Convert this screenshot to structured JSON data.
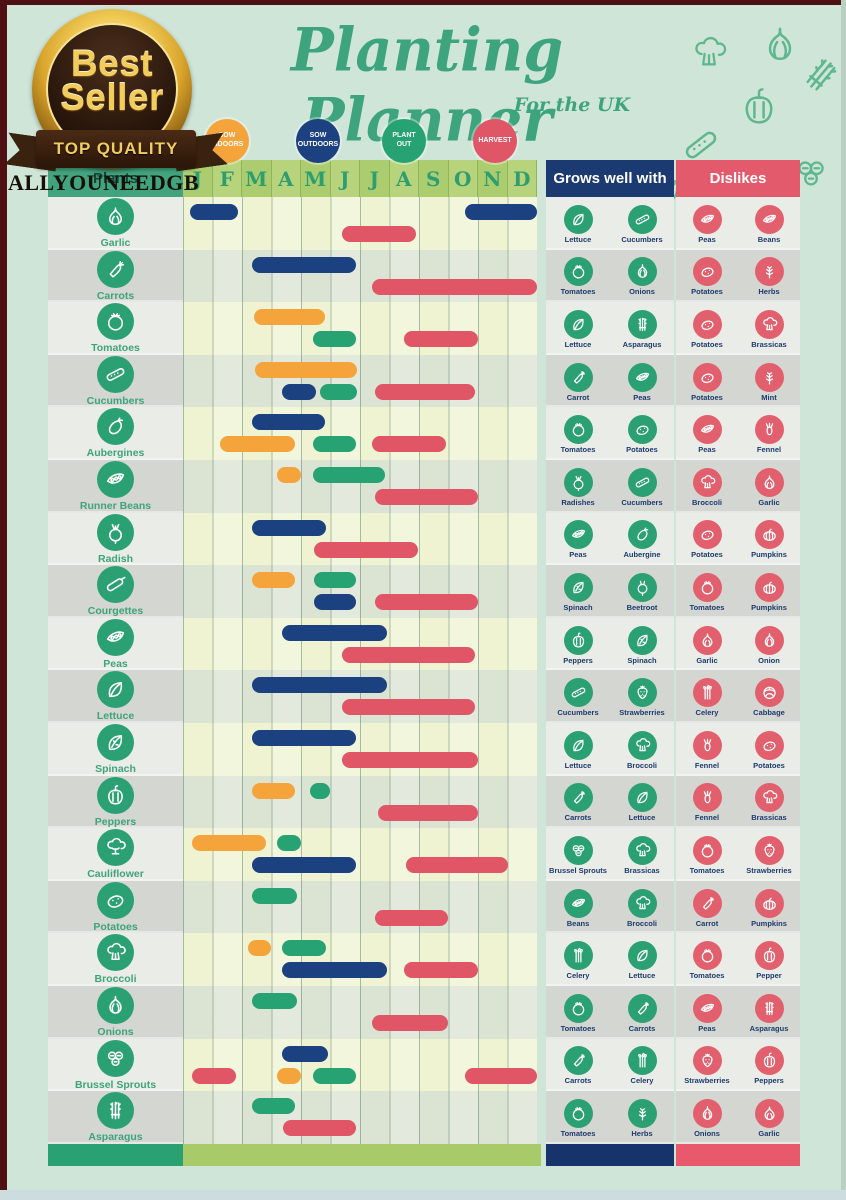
{
  "badge": {
    "top": "Best",
    "bottom": "Seller",
    "ribbon": "TOP QUALITY",
    "brand": "ALLYOUNEEDGB"
  },
  "title": "Planting Planner",
  "subtitle": "For the UK",
  "headers": {
    "plants": "Plants",
    "grows": "Grows well with",
    "dislikes": "Dislikes"
  },
  "colors": {
    "page_bg": "#cfe5d7",
    "title_green": "#3da47d",
    "sow-indoors": "#f5a43c",
    "sow-outdoors": "#1c4181",
    "plant-out": "#27a273",
    "harvest": "#e05666",
    "grows_header": "#1c3a72",
    "dislikes_header": "#e25a6b",
    "month_band": "#accd6f",
    "footer_months": "#a9ca69",
    "footer_plants": "#2aa173",
    "footer_grows": "#16336b",
    "footer_dislikes": "#e8596b"
  },
  "chart_data": {
    "type": "gantt",
    "title": "Planting Planner",
    "subtitle": "For the UK",
    "months": [
      "J",
      "F",
      "M",
      "A",
      "M",
      "J",
      "J",
      "A",
      "S",
      "O",
      "N",
      "D"
    ],
    "legend": [
      {
        "key": "sow-indoors",
        "label": "SOW INDOORS",
        "color": "#f5a43c"
      },
      {
        "key": "sow-outdoors",
        "label": "SOW OUTDOORS",
        "color": "#1c4181"
      },
      {
        "key": "plant-out",
        "label": "PLANT OUT",
        "color": "#27a273"
      },
      {
        "key": "harvest",
        "label": "HARVEST",
        "color": "#e05666"
      }
    ],
    "axis_note": "bars measured in months, 0 = start of January, 12 = end of December",
    "rows": [
      {
        "name": "Garlic",
        "icon": "garlic",
        "bars": [
          {
            "t": "sow-outdoors",
            "s": 0.25,
            "e": 1.85,
            "l": 1
          },
          {
            "t": "sow-outdoors",
            "s": 9.55,
            "e": 12,
            "l": 1
          },
          {
            "t": "harvest",
            "s": 5.4,
            "e": 7.9,
            "l": 2
          }
        ],
        "grows": [
          {
            "label": "Lettuce",
            "icon": "lettuce"
          },
          {
            "label": "Cucumbers",
            "icon": "cucumber"
          }
        ],
        "dislikes": [
          {
            "label": "Peas",
            "icon": "peas"
          },
          {
            "label": "Beans",
            "icon": "peas"
          }
        ]
      },
      {
        "name": "Carrots",
        "icon": "carrot",
        "bars": [
          {
            "t": "sow-outdoors",
            "s": 2.35,
            "e": 5.85,
            "l": 1
          },
          {
            "t": "harvest",
            "s": 6.4,
            "e": 12,
            "l": 2
          }
        ],
        "grows": [
          {
            "label": "Tomatoes",
            "icon": "tomato"
          },
          {
            "label": "Onions",
            "icon": "onion"
          }
        ],
        "dislikes": [
          {
            "label": "Potatoes",
            "icon": "potato"
          },
          {
            "label": "Herbs",
            "icon": "herbs"
          }
        ]
      },
      {
        "name": "Tomatoes",
        "icon": "tomato",
        "bars": [
          {
            "t": "sow-indoors",
            "s": 2.4,
            "e": 4.8,
            "l": 1
          },
          {
            "t": "plant-out",
            "s": 4.4,
            "e": 5.85,
            "l": 2
          },
          {
            "t": "harvest",
            "s": 7.5,
            "e": 10,
            "l": 2
          }
        ],
        "grows": [
          {
            "label": "Lettuce",
            "icon": "lettuce"
          },
          {
            "label": "Asparagus",
            "icon": "asparagus"
          }
        ],
        "dislikes": [
          {
            "label": "Potatoes",
            "icon": "potato"
          },
          {
            "label": "Brassicas",
            "icon": "broccoli"
          }
        ]
      },
      {
        "name": "Cucumbers",
        "icon": "cucumber",
        "bars": [
          {
            "t": "sow-indoors",
            "s": 2.45,
            "e": 5.9,
            "l": 1
          },
          {
            "t": "sow-outdoors",
            "s": 3.35,
            "e": 4.5,
            "l": 2
          },
          {
            "t": "plant-out",
            "s": 4.65,
            "e": 5.9,
            "l": 2
          },
          {
            "t": "harvest",
            "s": 6.5,
            "e": 9.9,
            "l": 2
          }
        ],
        "grows": [
          {
            "label": "Carrot",
            "icon": "carrot"
          },
          {
            "label": "Peas",
            "icon": "peas"
          }
        ],
        "dislikes": [
          {
            "label": "Potatoes",
            "icon": "potato"
          },
          {
            "label": "Mint",
            "icon": "herbs"
          }
        ]
      },
      {
        "name": "Aubergines",
        "icon": "aubergine",
        "bars": [
          {
            "t": "sow-outdoors",
            "s": 2.35,
            "e": 4.8,
            "l": 1
          },
          {
            "t": "sow-indoors",
            "s": 1.25,
            "e": 3.8,
            "l": 2
          },
          {
            "t": "plant-out",
            "s": 4.4,
            "e": 5.85,
            "l": 2
          },
          {
            "t": "harvest",
            "s": 6.4,
            "e": 8.9,
            "l": 2
          }
        ],
        "grows": [
          {
            "label": "Tomatoes",
            "icon": "tomato"
          },
          {
            "label": "Potatoes",
            "icon": "potato"
          }
        ],
        "dislikes": [
          {
            "label": "Peas",
            "icon": "peas"
          },
          {
            "label": "Fennel",
            "icon": "fennel"
          }
        ]
      },
      {
        "name": "Runner Beans",
        "icon": "peas",
        "bars": [
          {
            "t": "sow-indoors",
            "s": 3.2,
            "e": 4.0,
            "l": 1
          },
          {
            "t": "plant-out",
            "s": 4.4,
            "e": 6.85,
            "l": 1
          },
          {
            "t": "harvest",
            "s": 6.5,
            "e": 10,
            "l": 2
          }
        ],
        "grows": [
          {
            "label": "Radishes",
            "icon": "radish"
          },
          {
            "label": "Cucumbers",
            "icon": "cucumber"
          }
        ],
        "dislikes": [
          {
            "label": "Broccoli",
            "icon": "broccoli"
          },
          {
            "label": "Garlic",
            "icon": "garlic"
          }
        ]
      },
      {
        "name": "Radish",
        "icon": "radish",
        "bars": [
          {
            "t": "sow-outdoors",
            "s": 2.35,
            "e": 4.85,
            "l": 1
          },
          {
            "t": "harvest",
            "s": 4.45,
            "e": 7.95,
            "l": 2
          }
        ],
        "grows": [
          {
            "label": "Peas",
            "icon": "peas"
          },
          {
            "label": "Aubergine",
            "icon": "aubergine"
          }
        ],
        "dislikes": [
          {
            "label": "Potatoes",
            "icon": "potato"
          },
          {
            "label": "Pumpkins",
            "icon": "pumpkin"
          }
        ]
      },
      {
        "name": "Courgettes",
        "icon": "courgette",
        "bars": [
          {
            "t": "sow-indoors",
            "s": 2.35,
            "e": 3.8,
            "l": 1
          },
          {
            "t": "plant-out",
            "s": 4.45,
            "e": 5.85,
            "l": 1
          },
          {
            "t": "sow-outdoors",
            "s": 4.45,
            "e": 5.85,
            "l": 2
          },
          {
            "t": "harvest",
            "s": 6.5,
            "e": 10,
            "l": 2
          }
        ],
        "grows": [
          {
            "label": "Spinach",
            "icon": "spinach"
          },
          {
            "label": "Beetroot",
            "icon": "beetroot"
          }
        ],
        "dislikes": [
          {
            "label": "Tomatoes",
            "icon": "tomato"
          },
          {
            "label": "Pumpkins",
            "icon": "pumpkin"
          }
        ]
      },
      {
        "name": "Peas",
        "icon": "peas",
        "bars": [
          {
            "t": "sow-outdoors",
            "s": 3.35,
            "e": 6.9,
            "l": 1
          },
          {
            "t": "harvest",
            "s": 5.4,
            "e": 9.9,
            "l": 2
          }
        ],
        "grows": [
          {
            "label": "Peppers",
            "icon": "pepper"
          },
          {
            "label": "Spinach",
            "icon": "spinach"
          }
        ],
        "dislikes": [
          {
            "label": "Garlic",
            "icon": "garlic"
          },
          {
            "label": "Onion",
            "icon": "onion"
          }
        ]
      },
      {
        "name": "Lettuce",
        "icon": "lettuce",
        "bars": [
          {
            "t": "sow-outdoors",
            "s": 2.35,
            "e": 6.9,
            "l": 1
          },
          {
            "t": "harvest",
            "s": 5.4,
            "e": 9.9,
            "l": 2
          }
        ],
        "grows": [
          {
            "label": "Cucumbers",
            "icon": "cucumber"
          },
          {
            "label": "Strawberries",
            "icon": "strawberry"
          }
        ],
        "dislikes": [
          {
            "label": "Celery",
            "icon": "celery"
          },
          {
            "label": "Cabbage",
            "icon": "cabbage"
          }
        ]
      },
      {
        "name": "Spinach",
        "icon": "spinach",
        "bars": [
          {
            "t": "sow-outdoors",
            "s": 2.35,
            "e": 5.85,
            "l": 1
          },
          {
            "t": "harvest",
            "s": 5.4,
            "e": 10,
            "l": 2
          }
        ],
        "grows": [
          {
            "label": "Lettuce",
            "icon": "lettuce"
          },
          {
            "label": "Broccoli",
            "icon": "broccoli"
          }
        ],
        "dislikes": [
          {
            "label": "Fennel",
            "icon": "fennel"
          },
          {
            "label": "Potatoes",
            "icon": "potato"
          }
        ]
      },
      {
        "name": "Peppers",
        "icon": "pepper",
        "bars": [
          {
            "t": "sow-indoors",
            "s": 2.35,
            "e": 3.8,
            "l": 1
          },
          {
            "t": "plant-out",
            "s": 4.3,
            "e": 5.0,
            "l": 1
          },
          {
            "t": "harvest",
            "s": 6.6,
            "e": 10,
            "l": 2
          }
        ],
        "grows": [
          {
            "label": "Carrots",
            "icon": "carrot"
          },
          {
            "label": "Lettuce",
            "icon": "lettuce"
          }
        ],
        "dislikes": [
          {
            "label": "Fennel",
            "icon": "fennel"
          },
          {
            "label": "Brassicas",
            "icon": "broccoli"
          }
        ]
      },
      {
        "name": "Cauliflower",
        "icon": "cauliflower",
        "bars": [
          {
            "t": "sow-indoors",
            "s": 0.3,
            "e": 2.8,
            "l": 1
          },
          {
            "t": "plant-out",
            "s": 3.2,
            "e": 4.0,
            "l": 1
          },
          {
            "t": "sow-outdoors",
            "s": 2.35,
            "e": 5.85,
            "l": 2
          },
          {
            "t": "harvest",
            "s": 7.55,
            "e": 11,
            "l": 2
          }
        ],
        "grows": [
          {
            "label": "Brussel Sprouts",
            "icon": "sprouts"
          },
          {
            "label": "Brassicas",
            "icon": "broccoli"
          }
        ],
        "dislikes": [
          {
            "label": "Tomatoes",
            "icon": "tomato"
          },
          {
            "label": "Strawberries",
            "icon": "strawberry"
          }
        ]
      },
      {
        "name": "Potatoes",
        "icon": "potato",
        "bars": [
          {
            "t": "plant-out",
            "s": 2.35,
            "e": 3.85,
            "l": 1
          },
          {
            "t": "harvest",
            "s": 6.5,
            "e": 9.0,
            "l": 2
          }
        ],
        "grows": [
          {
            "label": "Beans",
            "icon": "peas"
          },
          {
            "label": "Broccoli",
            "icon": "broccoli"
          }
        ],
        "dislikes": [
          {
            "label": "Carrot",
            "icon": "carrot"
          },
          {
            "label": "Pumpkins",
            "icon": "pumpkin"
          }
        ]
      },
      {
        "name": "Broccoli",
        "icon": "broccoli",
        "bars": [
          {
            "t": "sow-indoors",
            "s": 2.2,
            "e": 3.0,
            "l": 1
          },
          {
            "t": "plant-out",
            "s": 3.35,
            "e": 4.85,
            "l": 1
          },
          {
            "t": "sow-outdoors",
            "s": 3.35,
            "e": 6.9,
            "l": 2
          },
          {
            "t": "harvest",
            "s": 7.5,
            "e": 10,
            "l": 2
          }
        ],
        "grows": [
          {
            "label": "Celery",
            "icon": "celery"
          },
          {
            "label": "Lettuce",
            "icon": "lettuce"
          }
        ],
        "dislikes": [
          {
            "label": "Tomatoes",
            "icon": "tomato"
          },
          {
            "label": "Pepper",
            "icon": "pepper"
          }
        ]
      },
      {
        "name": "Onions",
        "icon": "onion",
        "bars": [
          {
            "t": "plant-out",
            "s": 2.35,
            "e": 3.85,
            "l": 1
          },
          {
            "t": "harvest",
            "s": 6.4,
            "e": 9.0,
            "l": 2
          }
        ],
        "grows": [
          {
            "label": "Tomatoes",
            "icon": "tomato"
          },
          {
            "label": "Carrots",
            "icon": "carrot"
          }
        ],
        "dislikes": [
          {
            "label": "Peas",
            "icon": "peas"
          },
          {
            "label": "Asparagus",
            "icon": "asparagus"
          }
        ]
      },
      {
        "name": "Brussel Sprouts",
        "icon": "sprouts",
        "bars": [
          {
            "t": "sow-outdoors",
            "s": 3.35,
            "e": 4.9,
            "l": 1
          },
          {
            "t": "harvest",
            "s": 0.3,
            "e": 1.8,
            "l": 2
          },
          {
            "t": "sow-indoors",
            "s": 3.2,
            "e": 4.0,
            "l": 2
          },
          {
            "t": "plant-out",
            "s": 4.4,
            "e": 5.85,
            "l": 2
          },
          {
            "t": "harvest",
            "s": 9.55,
            "e": 12,
            "l": 2
          }
        ],
        "grows": [
          {
            "label": "Carrots",
            "icon": "carrot"
          },
          {
            "label": "Celery",
            "icon": "celery"
          }
        ],
        "dislikes": [
          {
            "label": "Strawberries",
            "icon": "strawberry"
          },
          {
            "label": "Peppers",
            "icon": "pepper"
          }
        ]
      },
      {
        "name": "Asparagus",
        "icon": "asparagus",
        "bars": [
          {
            "t": "plant-out",
            "s": 2.35,
            "e": 3.8,
            "l": 1
          },
          {
            "t": "harvest",
            "s": 3.4,
            "e": 5.85,
            "l": 2
          }
        ],
        "grows": [
          {
            "label": "Tomatoes",
            "icon": "tomato"
          },
          {
            "label": "Herbs",
            "icon": "herbs"
          }
        ],
        "dislikes": [
          {
            "label": "Onions",
            "icon": "onion"
          },
          {
            "label": "Garlic",
            "icon": "garlic"
          }
        ]
      }
    ]
  }
}
